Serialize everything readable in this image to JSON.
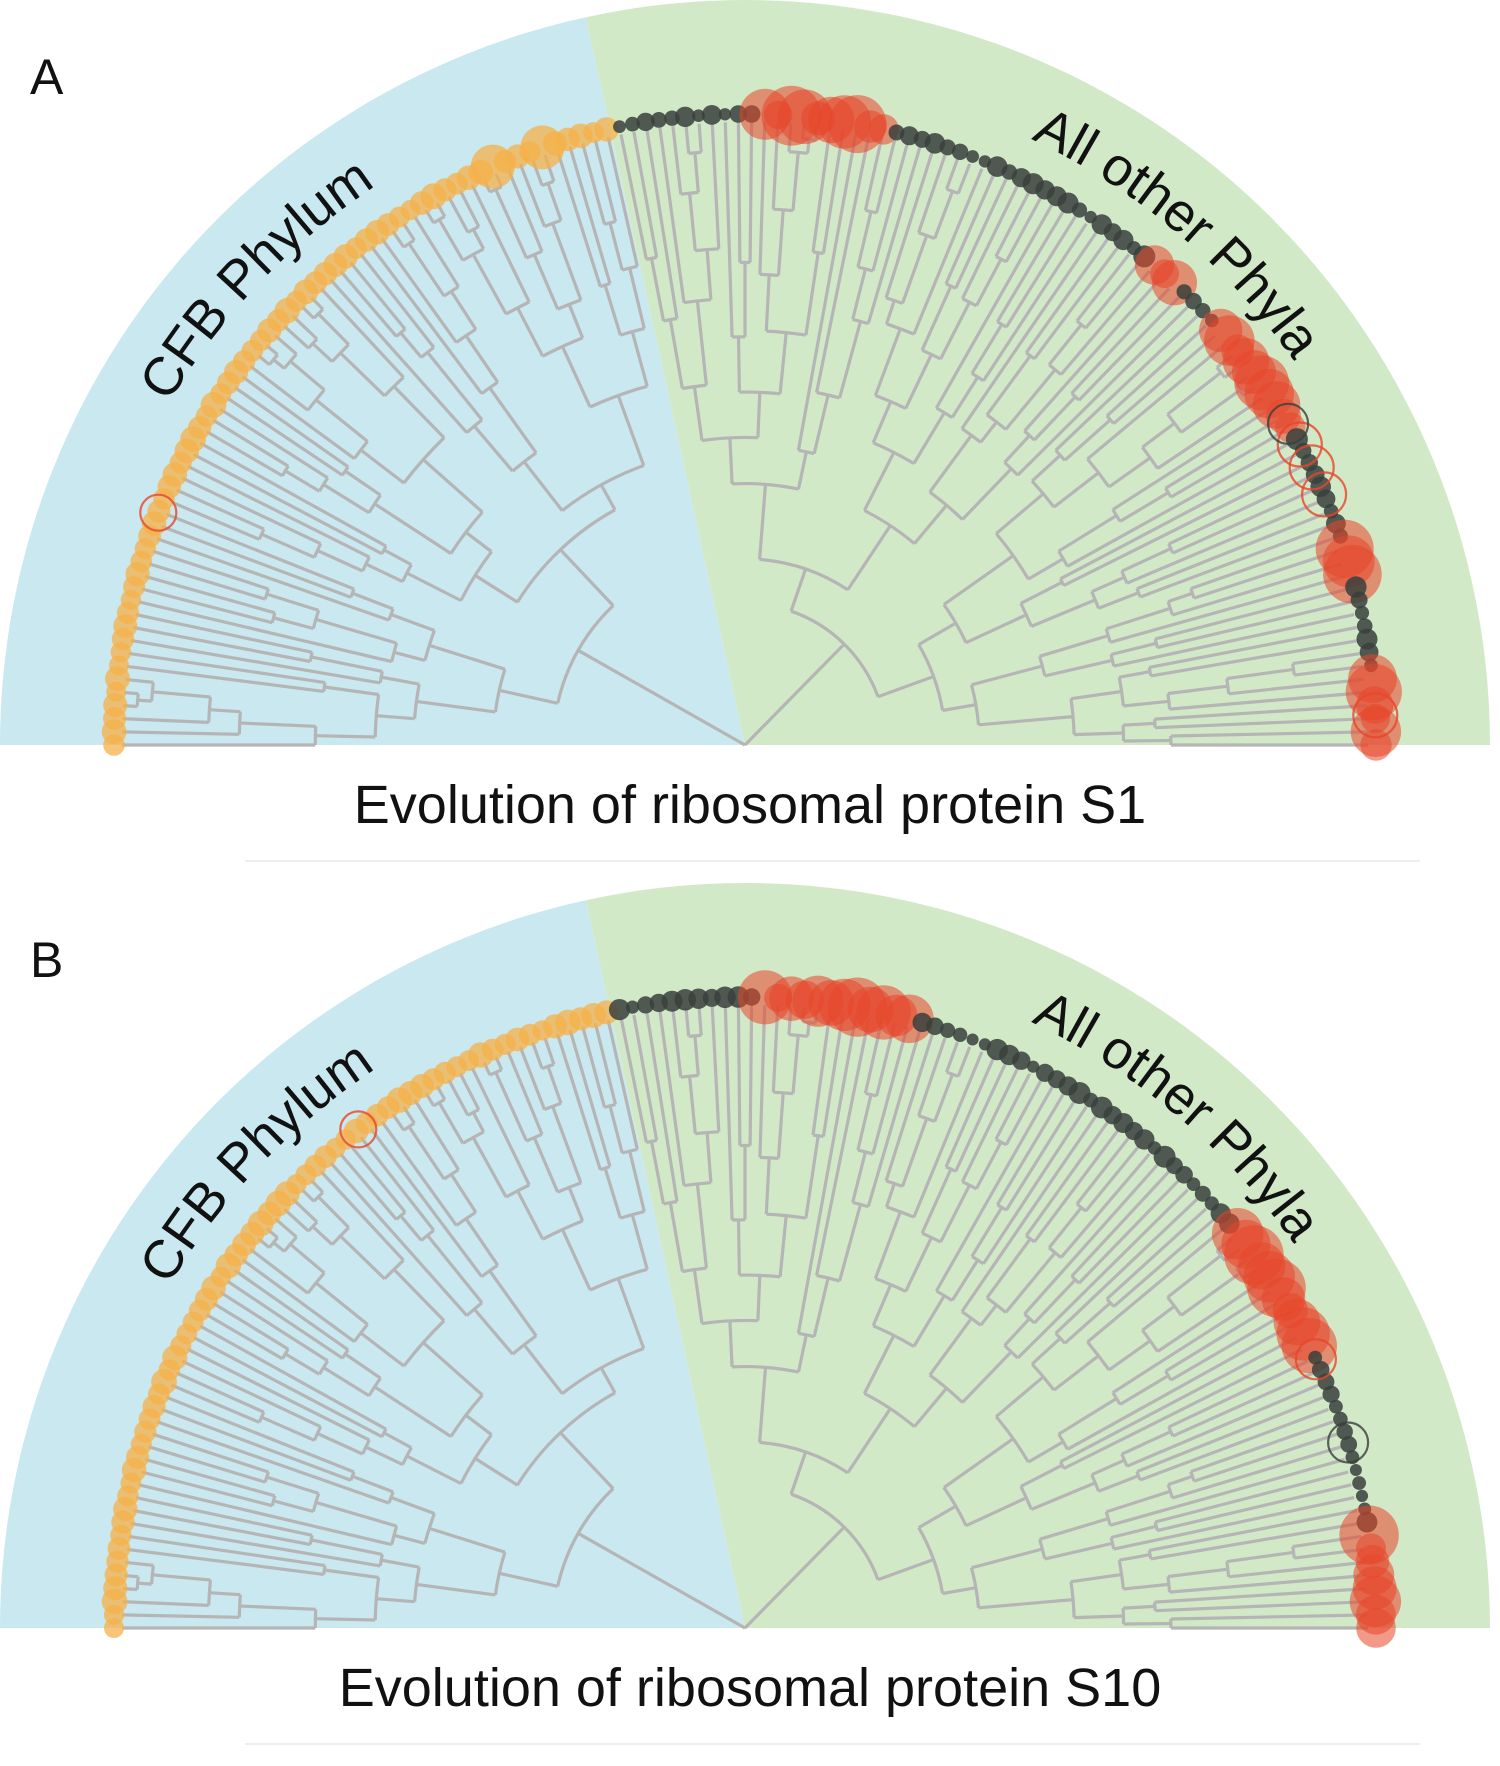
{
  "panels": [
    {
      "letter": "A",
      "caption": "Evolution of ribosomal protein S1",
      "left_region_label": "CFB Phylum",
      "right_region_label": "All other Phyla"
    },
    {
      "letter": "B",
      "caption": "Evolution of ribosomal protein S10",
      "left_region_label": "CFB Phylum",
      "right_region_label": "All other Phyla"
    }
  ],
  "colors": {
    "cfb_region": "#c9e8f0",
    "other_region": "#d2e9c8",
    "branches": "#b5b5b5",
    "cfb_tips": "#f5b24a",
    "red_tips": "#e8452a",
    "dark_tips": "#3a3f3c"
  }
}
